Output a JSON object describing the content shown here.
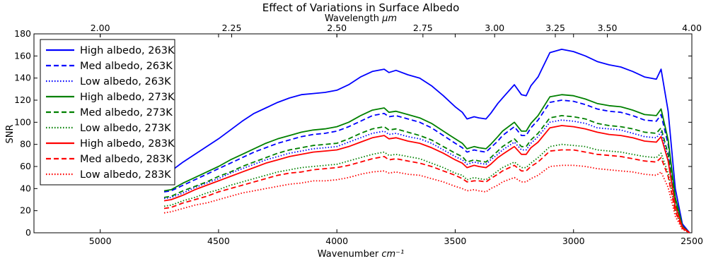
{
  "chart_data": {
    "type": "line",
    "title": "Effect of Variations in Surface Albedo",
    "xlabel": "Wavenumber",
    "xlabel_unit": "cm⁻¹",
    "x2label": "Wavelength",
    "x2label_unit": "μm",
    "ylabel": "SNR",
    "xlim": [
      5280,
      2500
    ],
    "ylim": [
      0,
      180
    ],
    "x_ticks": [
      5000,
      4500,
      4000,
      3500,
      3000,
      2500
    ],
    "x2_ticks": [
      2.0,
      2.25,
      2.5,
      2.75,
      3.0,
      3.25,
      3.5,
      4.0
    ],
    "x2_tick_labels": [
      "2.00",
      "2.25",
      "2.50",
      "2.75",
      "3.00",
      "3.25",
      "3.50",
      "4.00"
    ],
    "y_ticks": [
      0,
      20,
      40,
      60,
      80,
      100,
      120,
      140,
      160,
      180
    ],
    "grid": false,
    "legend_position": "top-left",
    "x": [
      4730,
      4700,
      4650,
      4600,
      4550,
      4500,
      4450,
      4400,
      4350,
      4300,
      4250,
      4200,
      4150,
      4100,
      4050,
      4000,
      3950,
      3900,
      3850,
      3800,
      3780,
      3750,
      3700,
      3650,
      3600,
      3550,
      3500,
      3470,
      3450,
      3420,
      3400,
      3370,
      3350,
      3320,
      3300,
      3250,
      3220,
      3200,
      3180,
      3150,
      3100,
      3050,
      3000,
      2950,
      2900,
      2850,
      2800,
      2750,
      2700,
      2650,
      2630,
      2600,
      2570,
      2540,
      2510
    ],
    "series": [
      {
        "name": "High albedo, 263K",
        "color": "#0000ff",
        "dash": "solid",
        "values": [
          55,
          56,
          64,
          71,
          78,
          85,
          93,
          101,
          108,
          113,
          118,
          122,
          125,
          126,
          127,
          129,
          134,
          141,
          146,
          148,
          145,
          147,
          143,
          140,
          133,
          124,
          114,
          109,
          103,
          105,
          104,
          103,
          108,
          117,
          122,
          134,
          125,
          124,
          133,
          141,
          163,
          166,
          164,
          160,
          155,
          152,
          150,
          146,
          141,
          139,
          148,
          110,
          40,
          8,
          0
        ]
      },
      {
        "name": "Med albedo, 263K",
        "color": "#0000ff",
        "dash": "dashed",
        "values": [
          37,
          38,
          43,
          48,
          53,
          58,
          63,
          68,
          73,
          77,
          81,
          84,
          87,
          89,
          90,
          92,
          96,
          101,
          106,
          108,
          105,
          106,
          103,
          100,
          95,
          88,
          81,
          77,
          73,
          75,
          74,
          73,
          77,
          83,
          88,
          96,
          88,
          88,
          95,
          102,
          118,
          120,
          119,
          116,
          112,
          110,
          109,
          106,
          102,
          101,
          107,
          80,
          30,
          6,
          0
        ]
      },
      {
        "name": "Low albedo, 263K",
        "color": "#0000ff",
        "dash": "dotted",
        "values": [
          31,
          32,
          36,
          41,
          45,
          49,
          54,
          58,
          62,
          66,
          69,
          72,
          74,
          76,
          77,
          78,
          82,
          86,
          90,
          92,
          89,
          90,
          87,
          85,
          81,
          75,
          69,
          66,
          62,
          64,
          63,
          62,
          66,
          71,
          75,
          82,
          75,
          75,
          81,
          87,
          100,
          102,
          101,
          99,
          95,
          94,
          93,
          90,
          87,
          86,
          91,
          68,
          25,
          5,
          0
        ]
      },
      {
        "name": "High albedo, 273K",
        "color": "#008000",
        "dash": "solid",
        "values": [
          38,
          39,
          45,
          50,
          55,
          60,
          66,
          71,
          76,
          81,
          85,
          88,
          91,
          93,
          94,
          96,
          100,
          106,
          111,
          113,
          109,
          110,
          107,
          104,
          99,
          92,
          85,
          81,
          76,
          78,
          77,
          76,
          80,
          87,
          92,
          100,
          92,
          92,
          99,
          106,
          123,
          125,
          124,
          121,
          117,
          115,
          114,
          111,
          107,
          106,
          112,
          84,
          32,
          6,
          0
        ]
      },
      {
        "name": "Med albedo, 273K",
        "color": "#008000",
        "dash": "dashed",
        "values": [
          32,
          33,
          38,
          42,
          46,
          51,
          55,
          60,
          64,
          68,
          72,
          75,
          77,
          79,
          80,
          81,
          85,
          90,
          94,
          96,
          93,
          94,
          91,
          88,
          84,
          78,
          72,
          69,
          64,
          66,
          65,
          64,
          68,
          74,
          78,
          85,
          78,
          78,
          84,
          90,
          104,
          106,
          105,
          103,
          99,
          97,
          96,
          94,
          91,
          90,
          95,
          71,
          27,
          5,
          0
        ]
      },
      {
        "name": "Low albedo, 273K",
        "color": "#008000",
        "dash": "dotted",
        "values": [
          24,
          25,
          29,
          32,
          36,
          39,
          43,
          46,
          49,
          52,
          55,
          57,
          59,
          60,
          61,
          62,
          65,
          68,
          71,
          73,
          70,
          71,
          69,
          67,
          63,
          59,
          54,
          52,
          48,
          50,
          49,
          48,
          51,
          56,
          59,
          64,
          59,
          59,
          63,
          68,
          78,
          80,
          79,
          78,
          75,
          74,
          73,
          71,
          69,
          68,
          72,
          54,
          20,
          4,
          0
        ]
      },
      {
        "name": "High albedo, 283K",
        "color": "#ff0000",
        "dash": "solid",
        "values": [
          29,
          30,
          34,
          39,
          43,
          47,
          51,
          55,
          59,
          63,
          66,
          69,
          71,
          73,
          74,
          75,
          78,
          82,
          86,
          88,
          85,
          86,
          83,
          81,
          77,
          72,
          66,
          63,
          59,
          61,
          60,
          59,
          62,
          68,
          71,
          78,
          71,
          71,
          77,
          82,
          95,
          97,
          96,
          94,
          91,
          89,
          88,
          86,
          83,
          82,
          87,
          65,
          24,
          5,
          0
        ]
      },
      {
        "name": "Med albedo, 283K",
        "color": "#ff0000",
        "dash": "dashed",
        "values": [
          22,
          23,
          27,
          30,
          33,
          37,
          40,
          43,
          46,
          49,
          52,
          54,
          55,
          57,
          58,
          59,
          61,
          64,
          67,
          69,
          66,
          67,
          65,
          63,
          60,
          56,
          52,
          49,
          46,
          47,
          47,
          46,
          49,
          53,
          56,
          61,
          56,
          56,
          60,
          64,
          74,
          75,
          75,
          73,
          71,
          70,
          69,
          67,
          65,
          64,
          68,
          51,
          19,
          4,
          0
        ]
      },
      {
        "name": "Low albedo, 283K",
        "color": "#ff0000",
        "dash": "dotted",
        "values": [
          18,
          19,
          22,
          25,
          27,
          30,
          33,
          36,
          38,
          40,
          42,
          44,
          45,
          47,
          47,
          48,
          50,
          53,
          55,
          56,
          54,
          55,
          53,
          52,
          49,
          46,
          42,
          40,
          38,
          39,
          38,
          37,
          40,
          43,
          46,
          50,
          46,
          46,
          49,
          52,
          60,
          61,
          61,
          60,
          58,
          57,
          56,
          55,
          53,
          52,
          55,
          41,
          15,
          3,
          0
        ]
      }
    ]
  }
}
